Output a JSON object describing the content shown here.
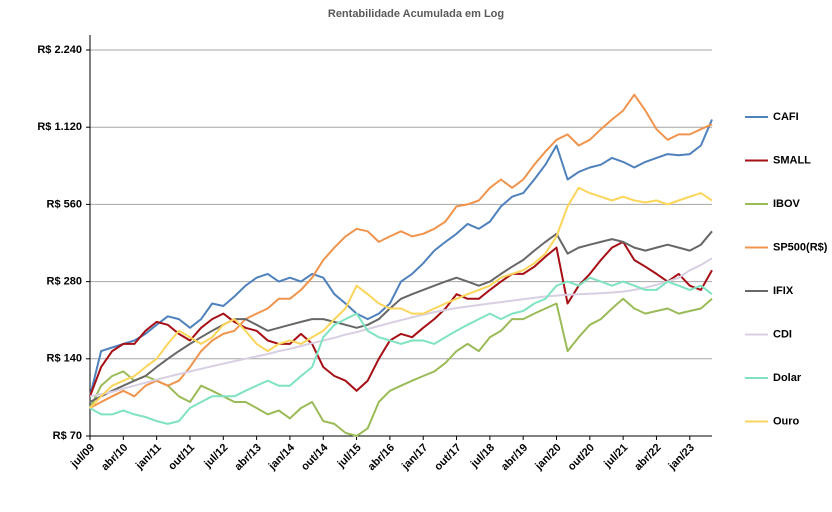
{
  "chart_data": {
    "type": "line",
    "title": "Rentabilidade Acumulada em Log",
    "categories": [
      "jul/09",
      null,
      null,
      "abr/10",
      null,
      null,
      "jan/11",
      null,
      null,
      "out/11",
      null,
      null,
      "jul/12",
      null,
      null,
      "abr/13",
      null,
      null,
      "jan/14",
      null,
      null,
      "out/14",
      null,
      null,
      "jul/15",
      null,
      null,
      "abr/16",
      null,
      null,
      "jan/17",
      null,
      null,
      "out/17",
      null,
      null,
      "jul/18",
      null,
      null,
      "abr/19",
      null,
      null,
      "jan/20",
      null,
      null,
      "out/20",
      null,
      null,
      "jul/21",
      null,
      null,
      "abr/22",
      null,
      null,
      "jan/23",
      null,
      null
    ],
    "series": [
      {
        "name": "CAFI",
        "color": "#4f81bd",
        "values": [
          100,
          150,
          155,
          160,
          165,
          175,
          190,
          205,
          200,
          185,
          200,
          230,
          225,
          245,
          270,
          290,
          300,
          280,
          290,
          280,
          300,
          290,
          250,
          230,
          210,
          200,
          210,
          230,
          280,
          300,
          330,
          370,
          400,
          430,
          470,
          450,
          480,
          550,
          600,
          620,
          700,
          800,
          950,
          700,
          750,
          780,
          800,
          850,
          820,
          780,
          820,
          850,
          880,
          870,
          880,
          950,
          1200
        ]
      },
      {
        "name": "SMALL",
        "color": "#a50f15",
        "values": [
          100,
          130,
          150,
          160,
          160,
          180,
          195,
          190,
          175,
          165,
          185,
          200,
          210,
          195,
          185,
          180,
          165,
          160,
          160,
          175,
          160,
          130,
          120,
          115,
          105,
          115,
          140,
          165,
          175,
          170,
          185,
          200,
          220,
          250,
          240,
          240,
          260,
          280,
          300,
          300,
          320,
          350,
          380,
          230,
          270,
          300,
          340,
          380,
          400,
          340,
          320,
          300,
          280,
          300,
          270,
          260,
          310
        ]
      },
      {
        "name": "IBOV",
        "color": "#9bbb59",
        "values": [
          90,
          110,
          120,
          125,
          115,
          120,
          115,
          110,
          100,
          95,
          110,
          105,
          100,
          95,
          95,
          90,
          85,
          88,
          82,
          90,
          95,
          80,
          78,
          72,
          70,
          75,
          95,
          105,
          110,
          115,
          120,
          125,
          135,
          150,
          160,
          150,
          170,
          180,
          200,
          200,
          210,
          220,
          230,
          150,
          170,
          190,
          200,
          220,
          240,
          220,
          210,
          215,
          220,
          210,
          215,
          220,
          240
        ]
      },
      {
        "name": "SP500(R$)",
        "color": "#f0944d",
        "values": [
          90,
          95,
          100,
          105,
          100,
          110,
          115,
          110,
          115,
          130,
          150,
          165,
          175,
          180,
          200,
          210,
          220,
          240,
          240,
          260,
          290,
          340,
          380,
          420,
          450,
          440,
          400,
          420,
          440,
          420,
          430,
          450,
          480,
          550,
          560,
          580,
          650,
          700,
          650,
          700,
          800,
          900,
          1000,
          1050,
          950,
          1000,
          1100,
          1200,
          1300,
          1500,
          1300,
          1100,
          1000,
          1050,
          1050,
          1100,
          1150
        ]
      },
      {
        "name": "IFIX",
        "color": "#676767",
        "values": [
          95,
          100,
          105,
          110,
          115,
          120,
          130,
          140,
          150,
          160,
          170,
          180,
          190,
          200,
          200,
          190,
          180,
          185,
          190,
          195,
          200,
          200,
          195,
          190,
          185,
          190,
          200,
          220,
          240,
          250,
          260,
          270,
          280,
          290,
          280,
          270,
          280,
          300,
          320,
          340,
          370,
          400,
          430,
          360,
          380,
          390,
          400,
          410,
          400,
          380,
          370,
          380,
          390,
          380,
          370,
          390,
          440
        ]
      },
      {
        "name": "CDI",
        "color": "#d8cfe2",
        "values": [
          100,
          102,
          104,
          107,
          110,
          113,
          116,
          119,
          122,
          125,
          128,
          131,
          134,
          137,
          140,
          143,
          146,
          150,
          153,
          157,
          161,
          165,
          169,
          174,
          178,
          183,
          188,
          193,
          198,
          203,
          208,
          213,
          217,
          221,
          224,
          227,
          230,
          233,
          236,
          239,
          242,
          245,
          247,
          249,
          250,
          251,
          252,
          254,
          256,
          260,
          265,
          272,
          280,
          290,
          310,
          325,
          345
        ]
      },
      {
        "name": "Dolar",
        "color": "#7fe3c2",
        "values": [
          90,
          85,
          85,
          88,
          85,
          83,
          80,
          78,
          80,
          90,
          95,
          100,
          100,
          100,
          105,
          110,
          115,
          110,
          110,
          120,
          130,
          170,
          190,
          200,
          210,
          180,
          170,
          165,
          160,
          165,
          165,
          160,
          170,
          180,
          190,
          200,
          210,
          200,
          210,
          215,
          230,
          240,
          270,
          280,
          270,
          290,
          280,
          270,
          280,
          270,
          260,
          260,
          280,
          270,
          260,
          270,
          250
        ]
      },
      {
        "name": "Ouro",
        "color": "#fcd55b",
        "values": [
          90,
          100,
          110,
          115,
          120,
          130,
          140,
          160,
          180,
          170,
          160,
          170,
          190,
          200,
          180,
          160,
          150,
          160,
          165,
          160,
          170,
          180,
          200,
          220,
          270,
          250,
          230,
          220,
          220,
          210,
          210,
          220,
          230,
          240,
          250,
          260,
          270,
          290,
          300,
          310,
          330,
          360,
          420,
          550,
          650,
          620,
          600,
          580,
          600,
          580,
          570,
          580,
          560,
          580,
          600,
          620,
          580
        ]
      }
    ],
    "ylim": [
      70,
      2240
    ],
    "log_scale": true,
    "yticks": [
      {
        "value": 70,
        "label": "R$ 70"
      },
      {
        "value": 140,
        "label": "R$ 140"
      },
      {
        "value": 280,
        "label": "R$ 280"
      },
      {
        "value": 560,
        "label": "R$ 560"
      },
      {
        "value": 1120,
        "label": "R$ 1.120"
      },
      {
        "value": 2240,
        "label": "R$ 2.240"
      }
    ],
    "grid": true,
    "legend": "right"
  }
}
